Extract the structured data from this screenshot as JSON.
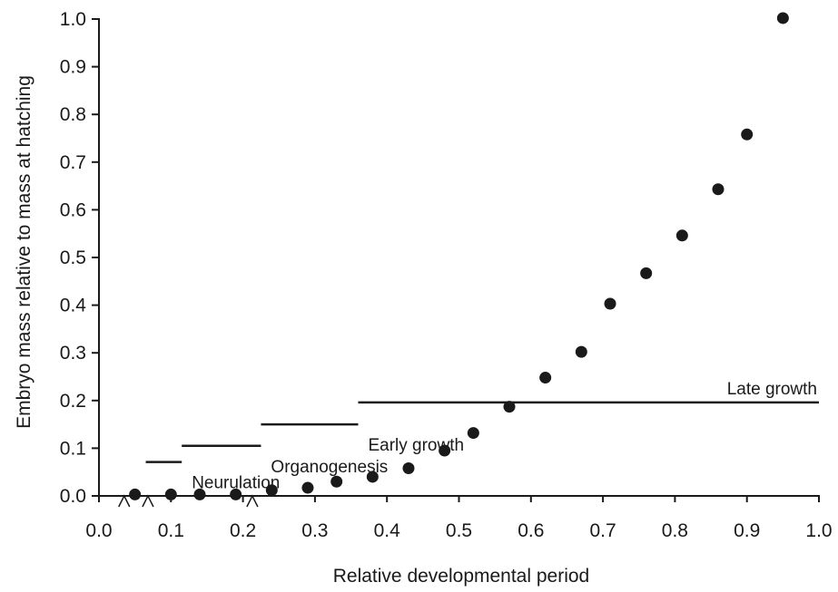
{
  "chart_data": {
    "type": "scatter",
    "xlabel": "Relative developmental period",
    "ylabel": "Embryo mass relative to mass at hatching",
    "xlim": [
      0.0,
      1.0
    ],
    "ylim": [
      0.0,
      1.0
    ],
    "x_ticks": [
      "0.0",
      "0.1",
      "0.2",
      "0.3",
      "0.4",
      "0.5",
      "0.6",
      "0.7",
      "0.8",
      "0.9",
      "1.0"
    ],
    "y_ticks": [
      "0.0",
      "0.1",
      "0.2",
      "0.3",
      "0.4",
      "0.5",
      "0.6",
      "0.7",
      "0.8",
      "0.9",
      "1.0"
    ],
    "grid": false,
    "legend": "none",
    "marker_color": "#1a1a1a",
    "points": [
      {
        "x": 0.05,
        "y": 0.003
      },
      {
        "x": 0.1,
        "y": 0.003
      },
      {
        "x": 0.14,
        "y": 0.003
      },
      {
        "x": 0.19,
        "y": 0.003
      },
      {
        "x": 0.24,
        "y": 0.012
      },
      {
        "x": 0.29,
        "y": 0.017
      },
      {
        "x": 0.33,
        "y": 0.03
      },
      {
        "x": 0.38,
        "y": 0.04
      },
      {
        "x": 0.43,
        "y": 0.058
      },
      {
        "x": 0.48,
        "y": 0.095
      },
      {
        "x": 0.52,
        "y": 0.132
      },
      {
        "x": 0.57,
        "y": 0.187
      },
      {
        "x": 0.62,
        "y": 0.248
      },
      {
        "x": 0.67,
        "y": 0.302
      },
      {
        "x": 0.71,
        "y": 0.403
      },
      {
        "x": 0.76,
        "y": 0.467
      },
      {
        "x": 0.81,
        "y": 0.546
      },
      {
        "x": 0.86,
        "y": 0.643
      },
      {
        "x": 0.9,
        "y": 0.758
      },
      {
        "x": 0.95,
        "y": 1.002
      }
    ],
    "phases": [
      {
        "label": "Neurulation",
        "x_start": 0.065,
        "x_end": 0.115,
        "y": 0.071
      },
      {
        "label": "Organogenesis",
        "x_start": 0.115,
        "x_end": 0.225,
        "y": 0.105
      },
      {
        "label": "Early growth",
        "x_start": 0.225,
        "x_end": 0.36,
        "y": 0.15
      },
      {
        "label": "Late growth",
        "x_start": 0.36,
        "x_end": 1.0,
        "y": 0.196
      }
    ],
    "axis_breaks_x": [
      0.035,
      0.068,
      0.213
    ]
  }
}
